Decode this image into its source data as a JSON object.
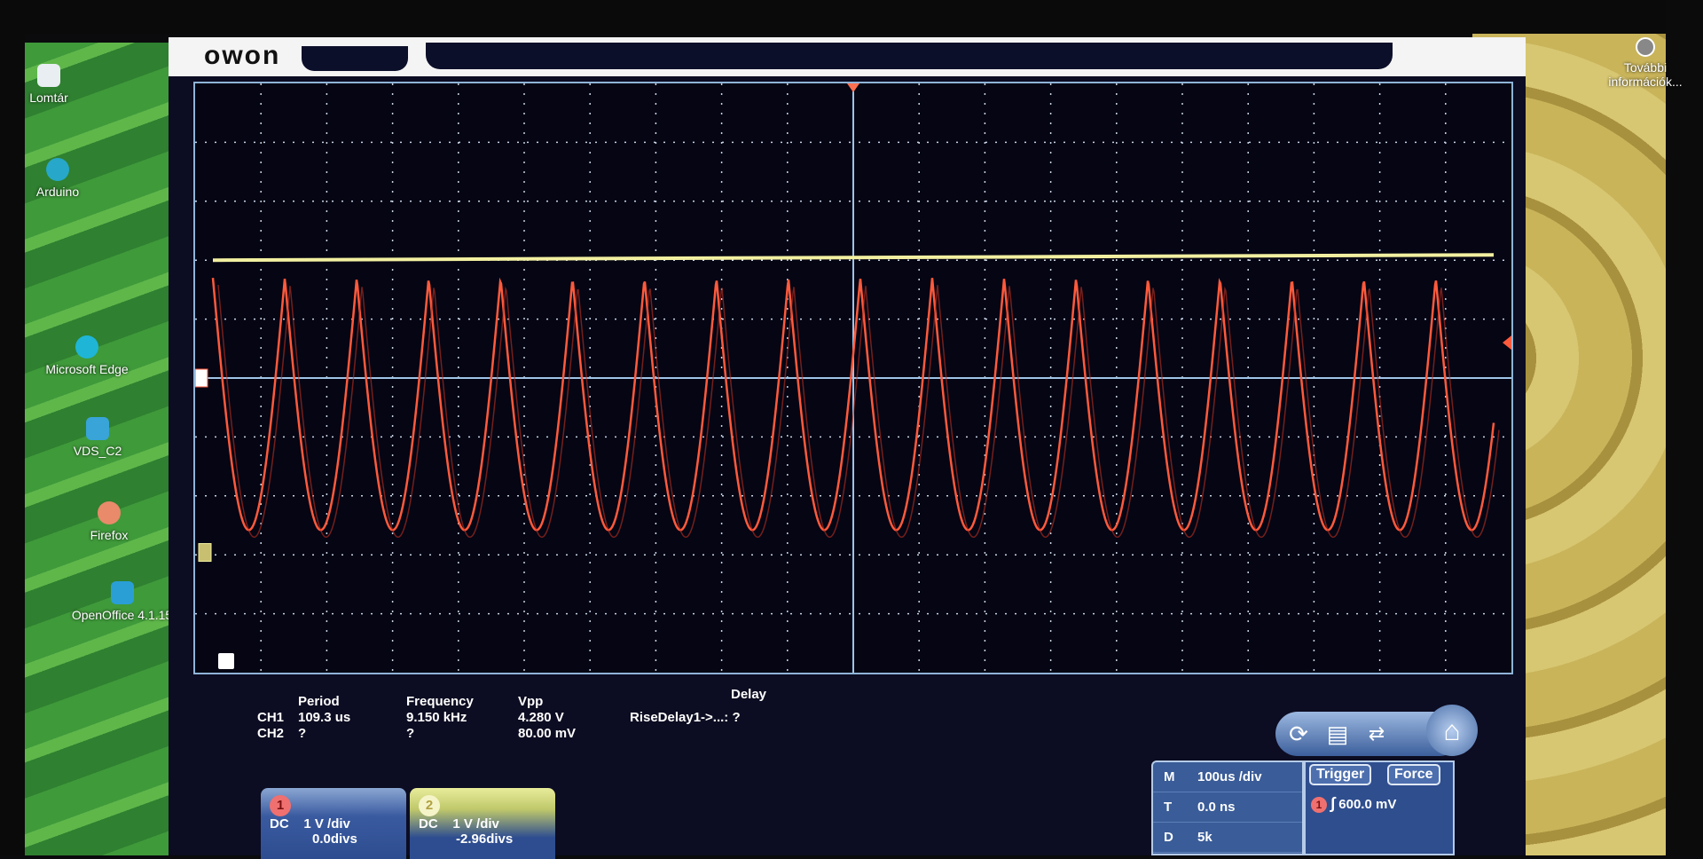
{
  "desktop": {
    "icons": [
      {
        "label": "Lomtár",
        "icon": "recycle-bin-icon"
      },
      {
        "label": "Arduino",
        "icon": "arduino-icon"
      },
      {
        "label": "Microsoft Edge",
        "icon": "edge-icon"
      },
      {
        "label": "VDS_C2",
        "icon": "vds-icon"
      },
      {
        "label": "Firefox",
        "icon": "firefox-icon"
      },
      {
        "label": "OpenOffice 4.1.15",
        "icon": "openoffice-icon"
      }
    ],
    "right_icon": {
      "label": "További információk...",
      "icon": "info-icon"
    }
  },
  "app": {
    "logo": "owon",
    "measurements": {
      "headers": [
        "Period",
        "Frequency",
        "Vpp",
        "Delay"
      ],
      "ch1": {
        "label": "CH1",
        "period": "109.3 us",
        "frequency": "9.150 kHz",
        "vpp": "4.280 V",
        "delay": "RiseDelay1->...: ?"
      },
      "ch2": {
        "label": "CH2",
        "period": "?",
        "frequency": "?",
        "vpp": "80.00 mV"
      }
    },
    "channels": [
      {
        "number": "1",
        "coupling": "DC",
        "scale": "1 V /div",
        "offset": "0.0divs",
        "color": "#ff5a3c"
      },
      {
        "number": "2",
        "coupling": "DC",
        "scale": "1 V /div",
        "offset": "-2.96divs",
        "color": "#f2f0a0"
      }
    ],
    "timebase": {
      "m_label": "M",
      "m_value": "100us /div",
      "t_label": "T",
      "t_value": "0.0 ns",
      "d_label": "D",
      "d_value": "5k"
    },
    "trigger": {
      "trigger_button": "Trigger",
      "force_button": "Force",
      "source": "1",
      "slope": "rising",
      "level": "600.0 mV"
    },
    "toolbar": [
      "refresh-icon",
      "save-icon",
      "connect-icon",
      "home-icon"
    ],
    "scope": {
      "grid_divisions": {
        "horizontal": 20,
        "vertical": 10
      },
      "ch1_wave": {
        "period_us": 109.3,
        "us_per_div": 100,
        "v_per_div": 1,
        "top_div": 1.7,
        "vpp_v": 4.28
      },
      "ch2_level_div": 2.0,
      "ch2_marker_div": -2.96,
      "trigger_level_div": 0.6
    }
  }
}
